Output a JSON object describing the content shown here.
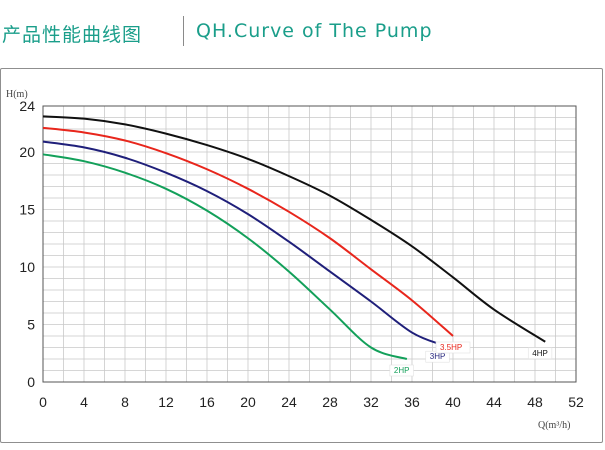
{
  "header": {
    "title_zh": "产品性能曲线图",
    "title_en": "QH.Curve of The Pump",
    "accent_color": "#1a9e8a"
  },
  "chart_data": {
    "type": "line",
    "title": "QH.Curve of The Pump",
    "ylabel": "H(m)",
    "xlabel": "Q(m³/h)",
    "xlim": [
      0,
      52
    ],
    "ylim": [
      0,
      24
    ],
    "xticks": [
      0,
      4,
      8,
      12,
      16,
      20,
      24,
      28,
      32,
      36,
      40,
      44,
      48,
      52
    ],
    "yticks": [
      0,
      5,
      10,
      15,
      20,
      24
    ],
    "grid": true,
    "series": [
      {
        "name": "2HP",
        "color": "#13a05a",
        "x": [
          0,
          4,
          8,
          12,
          16,
          20,
          24,
          28,
          32,
          35.5
        ],
        "y": [
          19.8,
          19.2,
          18.2,
          16.8,
          14.9,
          12.5,
          9.6,
          6.3,
          3.0,
          2.0
        ]
      },
      {
        "name": "3HP",
        "color": "#1f1f7a",
        "x": [
          0,
          4,
          8,
          12,
          16,
          20,
          24,
          28,
          32,
          36,
          39
        ],
        "y": [
          20.9,
          20.4,
          19.5,
          18.2,
          16.6,
          14.6,
          12.2,
          9.6,
          7.0,
          4.3,
          3.2
        ]
      },
      {
        "name": "3.5HP",
        "color": "#e8261c",
        "x": [
          0,
          4,
          8,
          12,
          16,
          20,
          24,
          28,
          32,
          36,
          40
        ],
        "y": [
          22.1,
          21.7,
          21.0,
          19.9,
          18.5,
          16.8,
          14.8,
          12.5,
          9.8,
          7.1,
          4.0
        ]
      },
      {
        "name": "4HP",
        "color": "#111111",
        "x": [
          0,
          4,
          8,
          12,
          16,
          20,
          24,
          28,
          32,
          36,
          40,
          44,
          49
        ],
        "y": [
          23.1,
          22.9,
          22.4,
          21.6,
          20.6,
          19.4,
          17.9,
          16.2,
          14.1,
          11.8,
          9.1,
          6.3,
          3.5
        ]
      }
    ]
  }
}
